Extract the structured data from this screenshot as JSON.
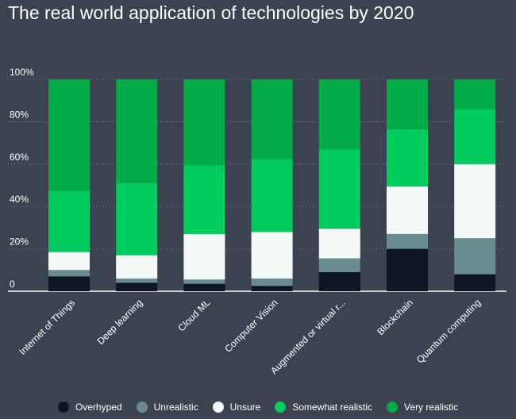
{
  "chart_data": {
    "type": "bar",
    "stacked": true,
    "title": "The real world application of technologies by 2020",
    "categories": [
      "Internet of Things",
      "Deep learning",
      "Cloud ML",
      "Computer Vision",
      "Augmented or virtual r...",
      "Blockchain",
      "Quantum computing"
    ],
    "series": [
      {
        "name": "Overhyped",
        "color": "#0f1623",
        "values": [
          7,
          4,
          3.5,
          2.5,
          9,
          20,
          8
        ]
      },
      {
        "name": "Unrealistic",
        "color": "#6b8c8e",
        "values": [
          3,
          2,
          2,
          3.5,
          6.5,
          7,
          17
        ]
      },
      {
        "name": "Unsure",
        "color": "#f4f8f9",
        "values": [
          8.5,
          11,
          21.5,
          22,
          14,
          22.5,
          35
        ]
      },
      {
        "name": "Somewhat realistic",
        "color": "#00cc5e",
        "values": [
          29,
          34,
          32.5,
          34.5,
          37.5,
          27,
          26
        ]
      },
      {
        "name": "Very realistic",
        "color": "#00aa46",
        "values": [
          52.5,
          49,
          40.5,
          37.5,
          33,
          23.5,
          14
        ]
      }
    ],
    "ylim": [
      0,
      100
    ],
    "yticks": [
      "0",
      "20%",
      "40%",
      "60%",
      "80%",
      "100%"
    ],
    "grid": true,
    "legend_position": "bottom"
  }
}
